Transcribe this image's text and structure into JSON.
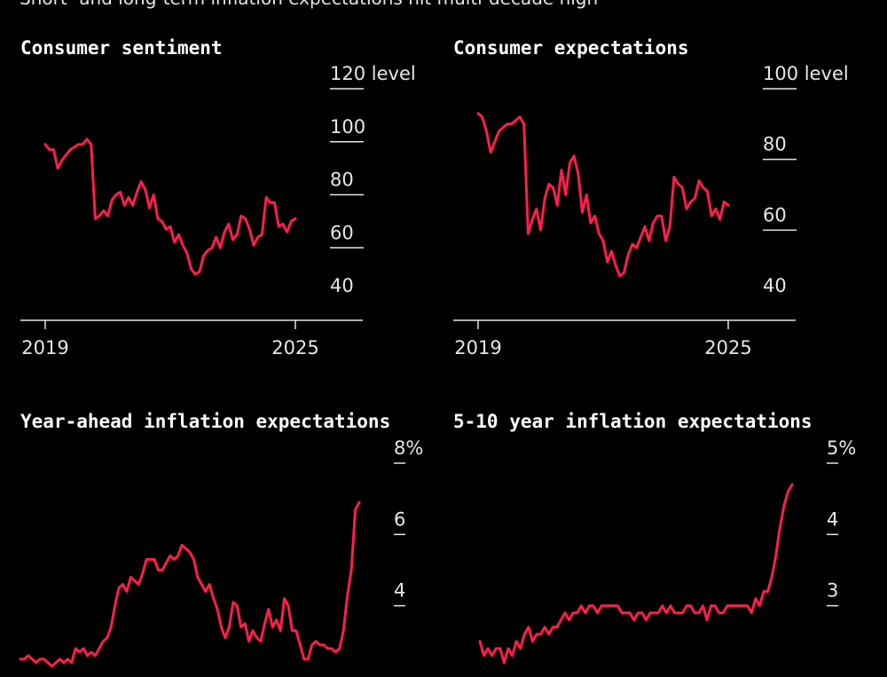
{
  "headline": "Short- and long-term inflation expectations hit multi-decade high",
  "colors": {
    "background": "#000000",
    "line": "#ff1f4b",
    "text": "#e6e6e6"
  },
  "chart_data": [
    {
      "type": "line",
      "title": "Consumer sentiment",
      "unit": "level",
      "x_ticks": [
        "2019",
        "2025"
      ],
      "xlim": [
        2019,
        2025
      ],
      "ylim": [
        40,
        120
      ],
      "y_ticks": [
        120,
        100,
        80,
        60,
        40
      ],
      "series": [
        {
          "x": [
            2019.0,
            2019.1,
            2019.2,
            2019.3,
            2019.4,
            2019.5,
            2019.6,
            2019.7,
            2019.8,
            2019.9,
            2020.0,
            2020.1,
            2020.2,
            2020.3,
            2020.4,
            2020.5,
            2020.6,
            2020.7,
            2020.8,
            2020.9,
            2021.0,
            2021.1,
            2021.2,
            2021.3,
            2021.4,
            2021.5,
            2021.6,
            2021.7,
            2021.8,
            2021.9,
            2022.0,
            2022.1,
            2022.2,
            2022.3,
            2022.4,
            2022.5,
            2022.6,
            2022.7,
            2022.8,
            2022.9,
            2023.0,
            2023.1,
            2023.2,
            2023.3,
            2023.4,
            2023.5,
            2023.6,
            2023.7,
            2023.8,
            2023.9,
            2024.0,
            2024.1,
            2024.2,
            2024.3,
            2024.4,
            2024.5,
            2024.6,
            2024.7,
            2024.8,
            2024.9,
            2025.0
          ],
          "values": [
            99,
            97,
            97,
            90,
            93,
            95,
            97,
            98,
            99,
            99,
            101,
            99,
            71,
            72,
            74,
            72,
            78,
            80,
            81,
            76,
            79,
            76,
            81,
            85,
            82,
            75,
            80,
            71,
            70,
            67,
            68,
            62,
            65,
            61,
            58,
            52,
            50,
            51,
            57,
            59,
            60,
            64,
            60,
            66,
            69,
            63,
            65,
            72,
            71,
            67,
            61,
            64,
            65,
            79,
            77,
            77,
            68,
            69,
            66,
            70,
            71
          ]
        }
      ]
    },
    {
      "type": "line",
      "title": "Consumer expectations",
      "unit": "level",
      "x_ticks": [
        "2019",
        "2025"
      ],
      "xlim": [
        2019,
        2025
      ],
      "ylim": [
        40,
        100
      ],
      "y_ticks": [
        100,
        80,
        60,
        40
      ],
      "series": [
        {
          "x": [
            2019.0,
            2019.1,
            2019.2,
            2019.3,
            2019.4,
            2019.5,
            2019.6,
            2019.7,
            2019.8,
            2019.9,
            2020.0,
            2020.1,
            2020.2,
            2020.3,
            2020.4,
            2020.5,
            2020.6,
            2020.7,
            2020.8,
            2020.9,
            2021.0,
            2021.1,
            2021.2,
            2021.3,
            2021.4,
            2021.5,
            2021.6,
            2021.7,
            2021.8,
            2021.9,
            2022.0,
            2022.1,
            2022.2,
            2022.3,
            2022.4,
            2022.5,
            2022.6,
            2022.7,
            2022.8,
            2022.9,
            2023.0,
            2023.1,
            2023.2,
            2023.3,
            2023.4,
            2023.5,
            2023.6,
            2023.7,
            2023.8,
            2023.9,
            2024.0,
            2024.1,
            2024.2,
            2024.3,
            2024.4,
            2024.5,
            2024.6,
            2024.7,
            2024.8,
            2024.9,
            2025.0
          ],
          "values": [
            93,
            92,
            88,
            82,
            85,
            88,
            89,
            90,
            90,
            91,
            92,
            90,
            59,
            63,
            66,
            60,
            69,
            73,
            72,
            67,
            77,
            70,
            79,
            81,
            76,
            65,
            70,
            62,
            64,
            59,
            57,
            51,
            54,
            50,
            47,
            48,
            53,
            56,
            55,
            58,
            61,
            57,
            62,
            64,
            64,
            57,
            61,
            75,
            73,
            72,
            66,
            68,
            69,
            74,
            72,
            71,
            64,
            66,
            63,
            68,
            67
          ]
        }
      ]
    },
    {
      "type": "line",
      "title": "Year-ahead inflation expectations",
      "unit": "%",
      "y_ticks": [
        8,
        6,
        4
      ],
      "ylim": [
        2,
        8
      ],
      "series": [
        {
          "values": [
            2.5,
            2.5,
            2.6,
            2.5,
            2.4,
            2.5,
            2.5,
            2.4,
            2.3,
            2.4,
            2.5,
            2.4,
            2.5,
            2.4,
            2.8,
            2.7,
            2.8,
            2.6,
            2.7,
            2.6,
            2.8,
            3.0,
            3.1,
            3.4,
            4.0,
            4.5,
            4.6,
            4.4,
            4.8,
            4.7,
            4.6,
            4.9,
            5.3,
            5.3,
            5.3,
            5.0,
            5.0,
            5.2,
            5.4,
            5.3,
            5.4,
            5.7,
            5.6,
            5.5,
            5.3,
            4.8,
            4.6,
            4.4,
            4.6,
            4.2,
            3.9,
            3.4,
            3.1,
            3.4,
            4.1,
            4.0,
            3.4,
            3.5,
            3.0,
            3.3,
            3.1,
            3.0,
            3.5,
            3.9,
            3.4,
            3.6,
            3.3,
            4.2,
            4.0,
            3.3,
            3.3,
            2.9,
            2.5,
            2.5,
            2.9,
            3.0,
            2.9,
            2.9,
            2.8,
            2.8,
            2.7,
            2.8,
            3.3,
            4.3,
            5.0,
            6.7,
            6.9
          ]
        }
      ]
    },
    {
      "type": "line",
      "title": "5-10 year inflation expectations",
      "unit": "%",
      "y_ticks": [
        5,
        4,
        3
      ],
      "ylim": [
        2,
        5
      ],
      "series": [
        {
          "values": [
            2.5,
            2.3,
            2.4,
            2.3,
            2.4,
            2.4,
            2.2,
            2.4,
            2.3,
            2.5,
            2.4,
            2.6,
            2.7,
            2.5,
            2.6,
            2.6,
            2.7,
            2.6,
            2.7,
            2.7,
            2.8,
            2.9,
            2.8,
            2.9,
            2.9,
            3.0,
            2.9,
            3.0,
            3.0,
            2.9,
            3.0,
            3.0,
            3.0,
            3.0,
            3.0,
            2.9,
            2.9,
            2.9,
            2.8,
            2.9,
            2.9,
            2.8,
            2.9,
            2.9,
            2.9,
            3.0,
            2.9,
            3.0,
            2.9,
            2.9,
            2.9,
            3.0,
            3.0,
            2.9,
            2.9,
            3.0,
            2.8,
            3.0,
            3.0,
            2.9,
            2.9,
            3.0,
            3.0,
            3.0,
            3.0,
            3.0,
            3.0,
            2.9,
            3.1,
            3.0,
            3.2,
            3.2,
            3.4,
            3.7,
            4.1,
            4.4,
            4.6,
            4.7
          ]
        }
      ]
    }
  ]
}
